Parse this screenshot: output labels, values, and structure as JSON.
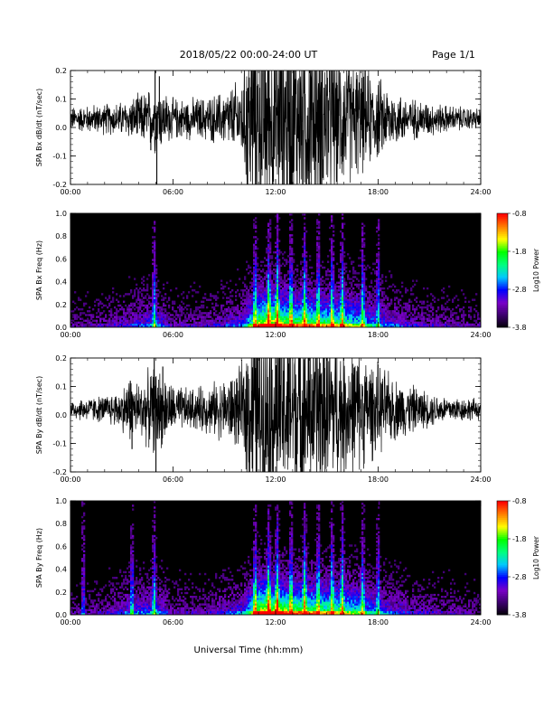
{
  "header": {
    "title": "2018/05/22  00:00-24:00 UT",
    "page": "Page 1/1"
  },
  "x_axis_title": "Universal Time (hh:mm)",
  "colors": {
    "colormap": [
      "#000000",
      "#3a006a",
      "#7a00c8",
      "#0000ff",
      "#00c8ff",
      "#00ff80",
      "#00ff00",
      "#ffff00",
      "#ff8000",
      "#ff0000"
    ],
    "trace": "#000000"
  },
  "chart_data": [
    {
      "type": "line",
      "ylabel": "SPA Bx dB/dt (nT/sec)",
      "xlim": [
        0,
        24
      ],
      "ylim": [
        -0.2,
        0.2
      ],
      "x_ticks": [
        "00:00",
        "06:00",
        "12:00",
        "18:00",
        "24:00"
      ],
      "y_ticks": [
        "-0.2",
        "-0.1",
        "0.0",
        "0.1",
        "0.2"
      ],
      "envelope": {
        "x": [
          0,
          1,
          2,
          3,
          4,
          5,
          6,
          7,
          8,
          9,
          10,
          10.5,
          11,
          12,
          13,
          14,
          15,
          16,
          17,
          18,
          19,
          20,
          21,
          22,
          23,
          24
        ],
        "amp": [
          0.035,
          0.04,
          0.045,
          0.05,
          0.07,
          0.1,
          0.06,
          0.06,
          0.065,
          0.08,
          0.12,
          0.3,
          0.3,
          0.3,
          0.3,
          0.28,
          0.25,
          0.2,
          0.16,
          0.12,
          0.08,
          0.06,
          0.05,
          0.04,
          0.035,
          0.03
        ],
        "center": 0.03
      },
      "spikes": [
        {
          "x": 4.95,
          "v": 0.2
        },
        {
          "x": 5.05,
          "v": -0.2
        },
        {
          "x": 5.2,
          "v": 0.18
        },
        {
          "x": 4.7,
          "v": -0.08
        },
        {
          "x": 3.9,
          "v": 0.1
        }
      ]
    },
    {
      "type": "heatmap",
      "ylabel": "SPA Bx Freq (Hz)",
      "colorbar_label": "Log10 Power",
      "colorbar_ticks": [
        "-0.8",
        "-1.8",
        "-2.8",
        "-3.8"
      ],
      "clim": [
        -3.8,
        -0.8
      ],
      "xlim": [
        0,
        24
      ],
      "ylim": [
        0,
        1.0
      ],
      "x_ticks": [
        "00:00",
        "06:00",
        "12:00",
        "18:00",
        "24:00"
      ],
      "y_ticks": [
        "0.0",
        "0.2",
        "0.4",
        "0.6",
        "0.8",
        "1.0"
      ],
      "activity": {
        "x": [
          0,
          2,
          4,
          5,
          6,
          8,
          10,
          10.5,
          11,
          11.5,
          12,
          13,
          14,
          15,
          16,
          17,
          18,
          20,
          22,
          24
        ],
        "level": [
          0.15,
          0.2,
          0.3,
          0.4,
          0.2,
          0.2,
          0.35,
          0.6,
          0.9,
          1.0,
          0.95,
          0.85,
          0.8,
          0.75,
          0.7,
          0.6,
          0.4,
          0.25,
          0.2,
          0.15
        ]
      },
      "bright_columns": [
        4.9,
        10.8,
        11.6,
        12.1,
        12.9,
        13.7,
        14.5,
        15.3,
        15.9,
        17.1,
        18.0
      ]
    },
    {
      "type": "line",
      "ylabel": "SPA By dB/dt (nT/sec)",
      "xlim": [
        0,
        24
      ],
      "ylim": [
        -0.2,
        0.2
      ],
      "x_ticks": [
        "00:00",
        "06:00",
        "12:00",
        "18:00",
        "24:00"
      ],
      "y_ticks": [
        "-0.2",
        "-0.1",
        "0.0",
        "0.1",
        "0.2"
      ],
      "envelope": {
        "x": [
          0,
          1,
          2,
          3,
          3.5,
          4,
          5,
          6,
          7,
          8,
          9,
          10,
          10.5,
          11,
          12,
          13,
          14,
          15,
          16,
          17,
          18,
          19,
          20,
          21,
          22,
          23,
          24
        ],
        "amp": [
          0.03,
          0.035,
          0.04,
          0.06,
          0.1,
          0.08,
          0.13,
          0.07,
          0.06,
          0.07,
          0.09,
          0.12,
          0.3,
          0.3,
          0.3,
          0.3,
          0.28,
          0.25,
          0.2,
          0.17,
          0.13,
          0.09,
          0.07,
          0.05,
          0.04,
          0.035,
          0.03
        ],
        "center": 0.02
      },
      "spikes": [
        {
          "x": 4.9,
          "v": 0.2
        },
        {
          "x": 5.0,
          "v": -0.2
        },
        {
          "x": 3.5,
          "v": 0.12
        },
        {
          "x": 3.6,
          "v": -0.12
        },
        {
          "x": 5.4,
          "v": 0.17
        }
      ]
    },
    {
      "type": "heatmap",
      "ylabel": "SPA By Freq (Hz)",
      "colorbar_label": "Log10 Power",
      "colorbar_ticks": [
        "-0.8",
        "-1.8",
        "-2.8",
        "-3.8"
      ],
      "clim": [
        -3.8,
        -0.8
      ],
      "xlim": [
        0,
        24
      ],
      "ylim": [
        0,
        1.0
      ],
      "x_ticks": [
        "00:00",
        "06:00",
        "12:00",
        "18:00",
        "24:00"
      ],
      "y_ticks": [
        "0.0",
        "0.2",
        "0.4",
        "0.6",
        "0.8",
        "1.0"
      ],
      "activity": {
        "x": [
          0,
          2,
          3.5,
          5,
          6,
          8,
          10,
          10.5,
          11,
          11.5,
          12,
          13,
          14,
          15,
          16,
          17,
          18,
          20,
          22,
          24
        ],
        "level": [
          0.15,
          0.2,
          0.35,
          0.4,
          0.2,
          0.2,
          0.35,
          0.6,
          0.95,
          1.0,
          0.95,
          0.85,
          0.8,
          0.75,
          0.7,
          0.6,
          0.4,
          0.25,
          0.2,
          0.15
        ]
      },
      "bright_columns": [
        0.75,
        3.6,
        4.9,
        10.8,
        11.6,
        12.1,
        12.9,
        13.7,
        14.5,
        15.3,
        15.9,
        17.1,
        18.0
      ]
    }
  ]
}
